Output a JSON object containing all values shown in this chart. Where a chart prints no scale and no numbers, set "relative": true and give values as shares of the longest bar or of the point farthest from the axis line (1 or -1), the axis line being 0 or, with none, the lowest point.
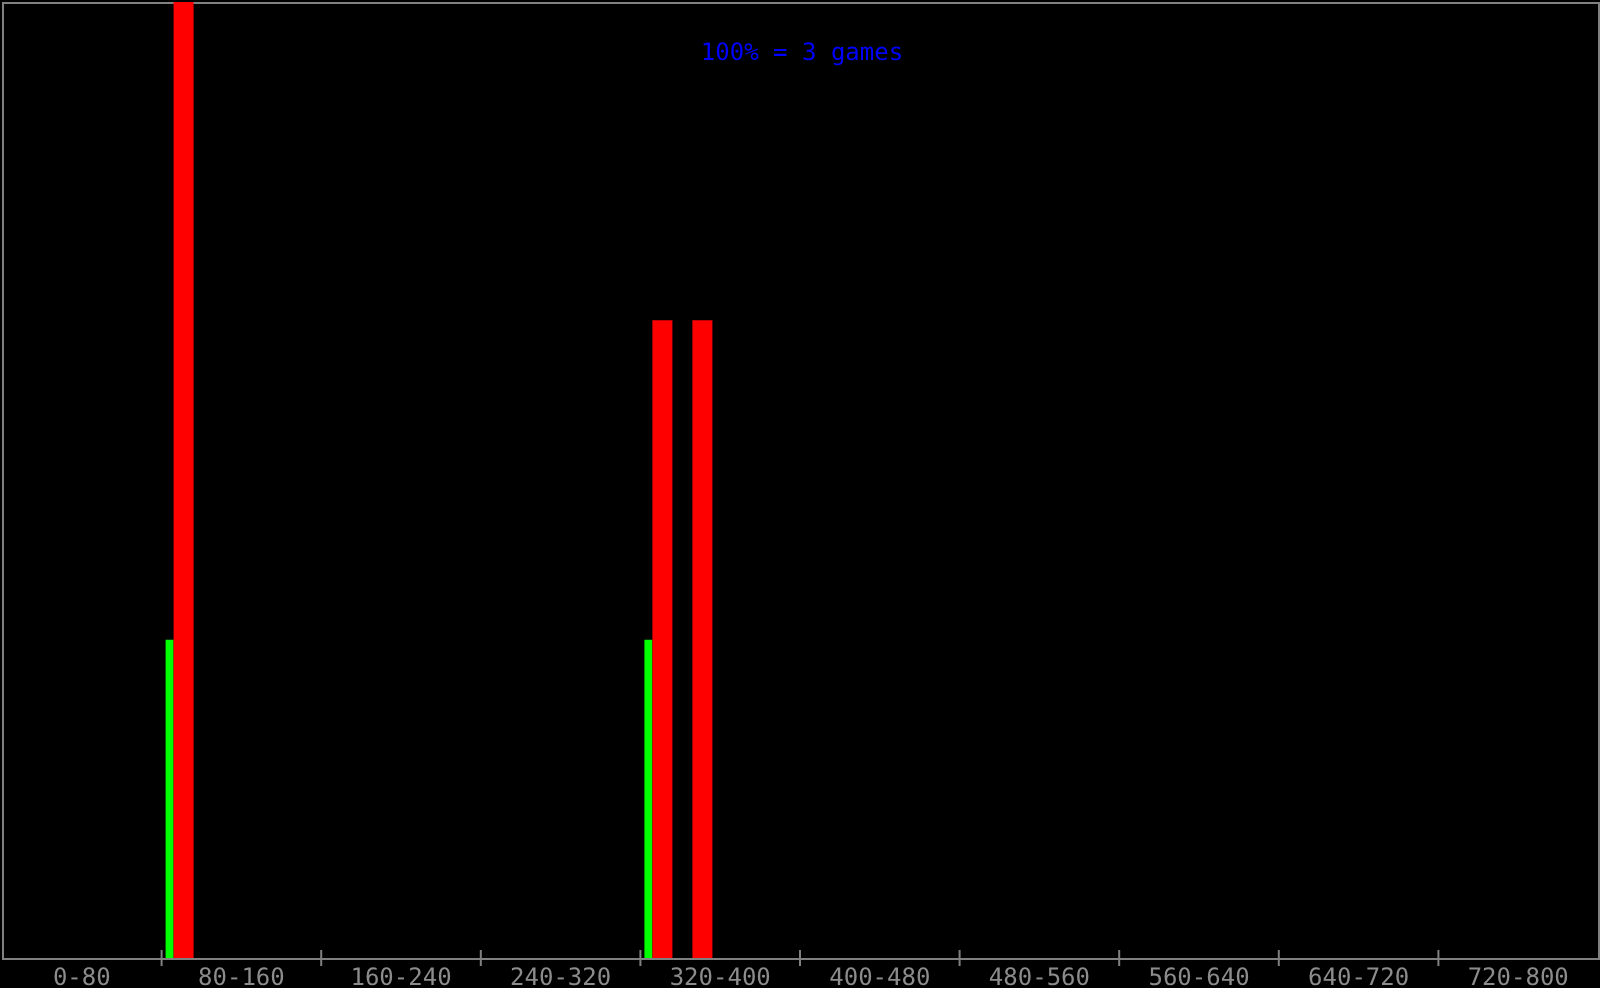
{
  "chart_data": {
    "type": "bar",
    "relative": true,
    "annotations": [
      "100% = 3 games"
    ],
    "categories": [
      "0-80",
      "80-160",
      "160-240",
      "240-320",
      "320-400",
      "400-480",
      "480-560",
      "560-640",
      "640-720",
      "720-800"
    ],
    "series": [
      {
        "color": "#00ff00",
        "values": [
          null,
          0.333,
          null,
          null,
          0.333,
          null,
          null,
          null,
          null,
          null
        ]
      },
      {
        "color": "#ff0000",
        "values": [
          null,
          1,
          null,
          null,
          0.667,
          null,
          null,
          null,
          null,
          null
        ]
      },
      {
        "color": "#ff0000",
        "values": [
          null,
          null,
          null,
          null,
          0.667,
          null,
          null,
          null,
          null,
          null
        ]
      }
    ]
  }
}
